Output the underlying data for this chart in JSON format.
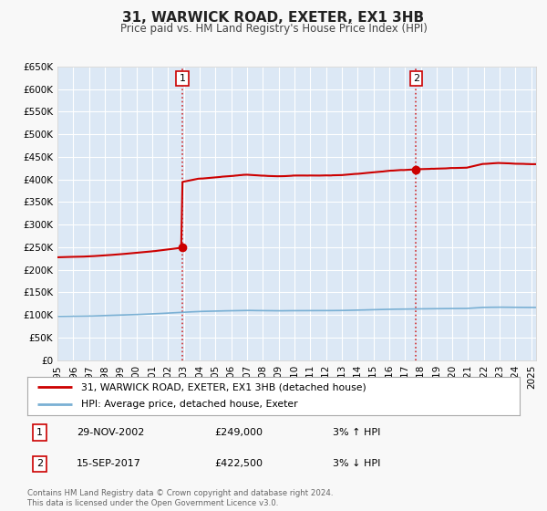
{
  "title": "31, WARWICK ROAD, EXETER, EX1 3HB",
  "subtitle": "Price paid vs. HM Land Registry's House Price Index (HPI)",
  "ylim": [
    0,
    650000
  ],
  "xlim_start": 1995.0,
  "xlim_end": 2025.3,
  "plot_bg_color": "#dce8f5",
  "grid_color": "#ffffff",
  "line1_color": "#cc0000",
  "line2_color": "#7ab0d4",
  "marker_color": "#cc0000",
  "sale1_x": 2002.91,
  "sale1_y": 249000,
  "sale2_x": 2017.71,
  "sale2_y": 422500,
  "legend1": "31, WARWICK ROAD, EXETER, EX1 3HB (detached house)",
  "legend2": "HPI: Average price, detached house, Exeter",
  "note1_num": "1",
  "note1_date": "29-NOV-2002",
  "note1_price": "£249,000",
  "note1_hpi": "3% ↑ HPI",
  "note2_num": "2",
  "note2_date": "15-SEP-2017",
  "note2_price": "£422,500",
  "note2_hpi": "3% ↓ HPI",
  "footer1": "Contains HM Land Registry data © Crown copyright and database right 2024.",
  "footer2": "This data is licensed under the Open Government Licence v3.0.",
  "ytick_labels": [
    "£0",
    "£50K",
    "£100K",
    "£150K",
    "£200K",
    "£250K",
    "£300K",
    "£350K",
    "£400K",
    "£450K",
    "£500K",
    "£550K",
    "£600K",
    "£650K"
  ],
  "ytick_values": [
    0,
    50000,
    100000,
    150000,
    200000,
    250000,
    300000,
    350000,
    400000,
    450000,
    500000,
    550000,
    600000,
    650000
  ],
  "xtick_years": [
    1995,
    1996,
    1997,
    1998,
    1999,
    2000,
    2001,
    2002,
    2003,
    2004,
    2005,
    2006,
    2007,
    2008,
    2009,
    2010,
    2011,
    2012,
    2013,
    2014,
    2015,
    2016,
    2017,
    2018,
    2019,
    2020,
    2021,
    2022,
    2023,
    2024,
    2025
  ],
  "n_points": 364
}
